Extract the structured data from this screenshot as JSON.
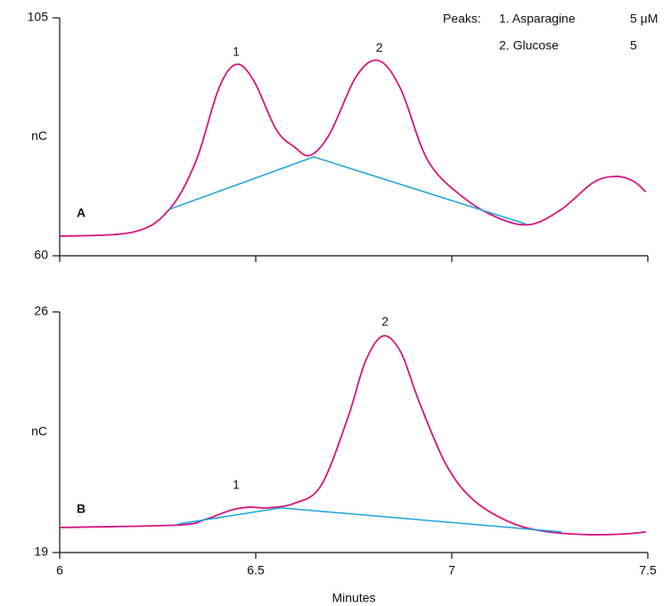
{
  "legend_table": {
    "title": "Peaks:",
    "rows": [
      [
        "1. Asparagine",
        "5 µM"
      ],
      [
        "2. Glucose",
        "5"
      ]
    ]
  },
  "chart_data": [
    {
      "type": "line",
      "panel_label": "A",
      "y_label": "nC",
      "show_xtick_labels": false,
      "xlim": [
        6,
        7.5
      ],
      "xticks": [
        6,
        6.5,
        7,
        7.5
      ],
      "ylim": [
        60,
        105
      ],
      "yticks": [
        60,
        105
      ],
      "series": [
        {
          "color": "#d6157f",
          "smooth": true,
          "x": [
            6.0,
            6.189,
            6.28,
            6.348,
            6.405,
            6.45,
            6.495,
            6.552,
            6.598,
            6.639,
            6.689,
            6.757,
            6.814,
            6.87,
            6.939,
            7.03,
            7.12,
            7.2,
            7.28,
            7.36,
            7.416,
            7.461,
            7.495
          ],
          "values": [
            63.7,
            64.5,
            68.8,
            78.0,
            91.5,
            96.2,
            93.1,
            83.9,
            80.6,
            79.0,
            83.1,
            94.0,
            96.9,
            91.5,
            78.0,
            71.0,
            67.1,
            65.9,
            68.8,
            73.8,
            75.0,
            74.2,
            72.1
          ]
        },
        {
          "color": "#1aa3dc",
          "smooth": false,
          "x": [
            6.28,
            6.648,
            7.189
          ],
          "values": [
            68.8,
            78.7,
            66.0
          ]
        }
      ],
      "annotations": [
        {
          "text": "1",
          "x": 6.45,
          "y": 98.5
        },
        {
          "text": "2",
          "x": 6.815,
          "y": 99.2
        }
      ]
    },
    {
      "type": "line",
      "panel_label": "B",
      "y_label": "nC",
      "x_label": "Minutes",
      "show_xtick_labels": true,
      "xlim": [
        6,
        7.5
      ],
      "xticks": [
        6,
        6.5,
        7,
        7.5
      ],
      "ylim": [
        19,
        26
      ],
      "yticks": [
        19,
        26
      ],
      "series": [
        {
          "color": "#d6157f",
          "smooth": true,
          "x": [
            6.0,
            6.302,
            6.37,
            6.439,
            6.484,
            6.53,
            6.598,
            6.666,
            6.734,
            6.78,
            6.825,
            6.87,
            6.916,
            6.984,
            7.052,
            7.143,
            7.234,
            7.348,
            7.439,
            7.495
          ],
          "values": [
            19.73,
            19.8,
            19.96,
            20.24,
            20.32,
            20.3,
            20.43,
            20.94,
            22.89,
            24.57,
            25.3,
            24.83,
            23.41,
            21.59,
            20.56,
            19.91,
            19.62,
            19.52,
            19.54,
            19.6
          ]
        },
        {
          "color": "#1aa3dc",
          "smooth": false,
          "x": [
            6.302,
            6.564,
            7.28
          ],
          "values": [
            19.83,
            20.3,
            19.6
          ]
        }
      ],
      "annotations": [
        {
          "text": "1",
          "x": 6.45,
          "y": 20.95
        },
        {
          "text": "2",
          "x": 6.83,
          "y": 25.7
        }
      ]
    }
  ]
}
